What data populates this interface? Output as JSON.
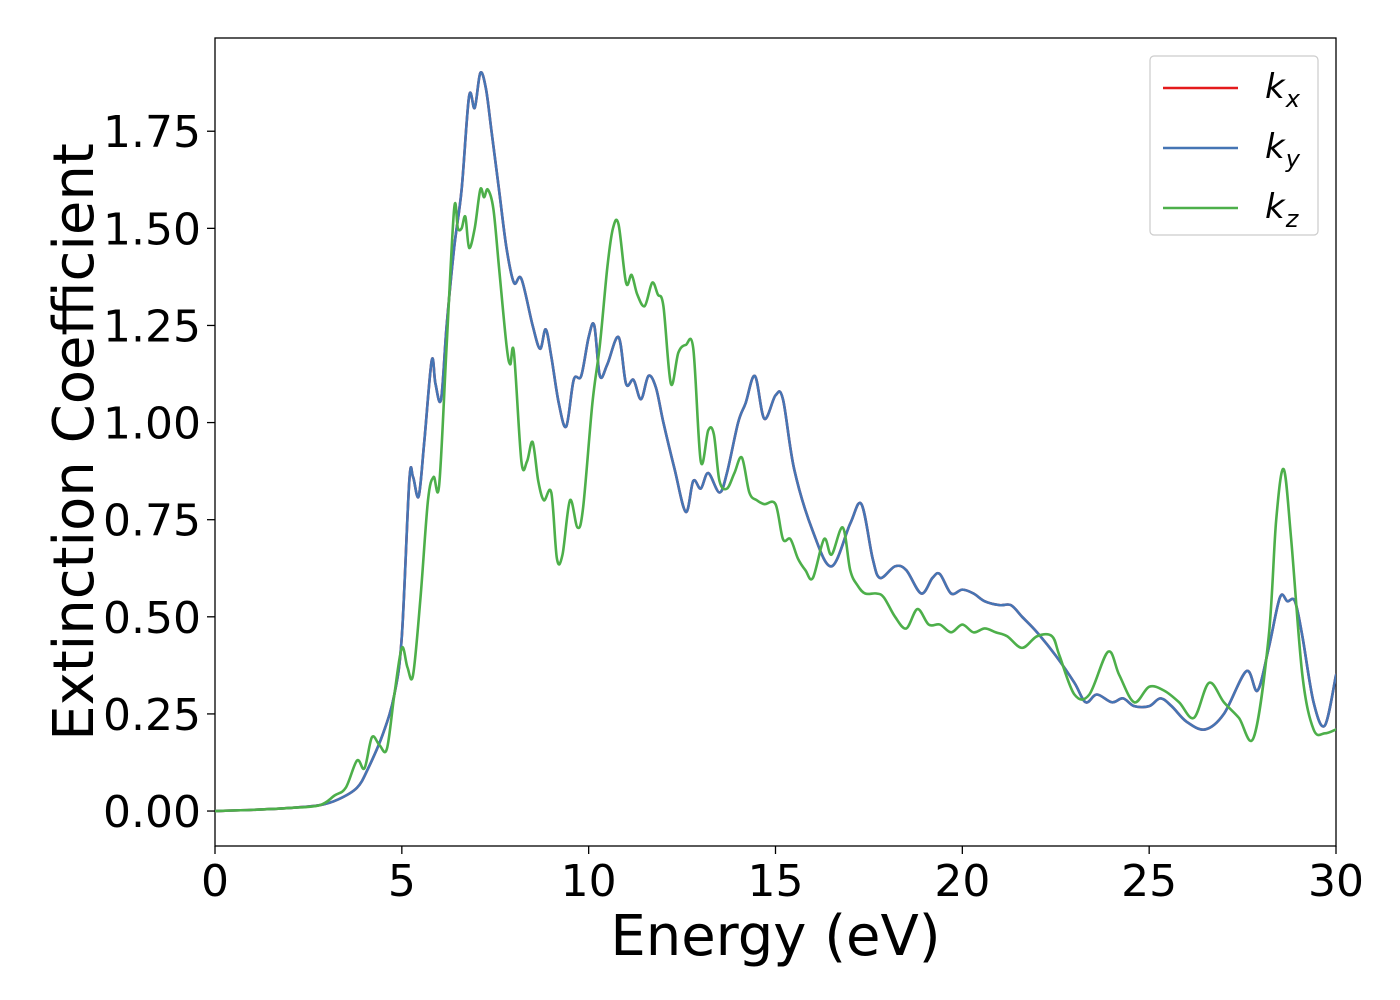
{
  "chart_data": {
    "type": "line",
    "title": "",
    "xlabel": "Energy (eV)",
    "ylabel": "Extinction Coefficient",
    "xlim": [
      0,
      30
    ],
    "ylim": [
      -0.09,
      1.99
    ],
    "xticks": [
      0,
      5,
      10,
      15,
      20,
      25,
      30
    ],
    "xtick_labels": [
      "0",
      "5",
      "10",
      "15",
      "20",
      "25",
      "30"
    ],
    "yticks": [
      0,
      0.25,
      0.5,
      0.75,
      1.0,
      1.25,
      1.5,
      1.75
    ],
    "ytick_labels": [
      "0.00",
      "0.25",
      "0.50",
      "0.75",
      "1.00",
      "1.25",
      "1.50",
      "1.75"
    ],
    "grid": false,
    "legend_position": "top-right",
    "series": [
      {
        "name": "k_x",
        "legend_base": "k",
        "legend_sub": "x",
        "color": "#e41a1c",
        "x": [
          0,
          1,
          2,
          2.8,
          3.3,
          3.8,
          4.1,
          4.5,
          4.8,
          5.0,
          5.2,
          5.3,
          5.45,
          5.6,
          5.8,
          5.9,
          6.05,
          6.2,
          6.4,
          6.6,
          6.8,
          6.95,
          7.1,
          7.25,
          7.4,
          7.6,
          7.8,
          8.0,
          8.2,
          8.5,
          8.7,
          8.85,
          9.0,
          9.2,
          9.4,
          9.6,
          9.8,
          10.0,
          10.15,
          10.3,
          10.5,
          10.8,
          11.0,
          11.2,
          11.4,
          11.6,
          11.8,
          12.0,
          12.3,
          12.6,
          12.8,
          13.0,
          13.2,
          13.5,
          13.7,
          14.0,
          14.2,
          14.45,
          14.7,
          15.0,
          15.2,
          15.5,
          16.0,
          16.5,
          17.0,
          17.3,
          17.6,
          17.8,
          18.2,
          18.5,
          18.9,
          19.2,
          19.4,
          19.7,
          20.0,
          20.3,
          20.6,
          21.0,
          21.3,
          21.6,
          22.0,
          22.5,
          23.0,
          23.3,
          23.6,
          24.0,
          24.3,
          24.6,
          25.0,
          25.3,
          25.6,
          26.0,
          26.5,
          27.0,
          27.6,
          27.9,
          28.2,
          28.5,
          28.7,
          28.9,
          29.1,
          29.4,
          29.7,
          30.0
        ],
        "y": [
          0.0,
          0.003,
          0.008,
          0.015,
          0.03,
          0.06,
          0.11,
          0.2,
          0.3,
          0.45,
          0.85,
          0.86,
          0.81,
          0.95,
          1.16,
          1.1,
          1.06,
          1.25,
          1.45,
          1.6,
          1.84,
          1.81,
          1.9,
          1.86,
          1.75,
          1.6,
          1.45,
          1.36,
          1.37,
          1.25,
          1.19,
          1.24,
          1.17,
          1.05,
          0.99,
          1.11,
          1.12,
          1.22,
          1.25,
          1.12,
          1.15,
          1.22,
          1.1,
          1.11,
          1.06,
          1.12,
          1.09,
          1.0,
          0.88,
          0.77,
          0.85,
          0.83,
          0.87,
          0.82,
          0.87,
          1.0,
          1.05,
          1.12,
          1.01,
          1.07,
          1.06,
          0.88,
          0.72,
          0.63,
          0.74,
          0.79,
          0.65,
          0.6,
          0.63,
          0.62,
          0.56,
          0.6,
          0.61,
          0.56,
          0.57,
          0.56,
          0.54,
          0.53,
          0.53,
          0.5,
          0.46,
          0.4,
          0.33,
          0.28,
          0.3,
          0.28,
          0.29,
          0.27,
          0.27,
          0.29,
          0.27,
          0.23,
          0.21,
          0.25,
          0.36,
          0.31,
          0.42,
          0.55,
          0.54,
          0.54,
          0.45,
          0.28,
          0.22,
          0.35
        ]
      },
      {
        "name": "k_y",
        "legend_base": "k",
        "legend_sub": "y",
        "color": "#4575b4",
        "x": [
          0,
          1,
          2,
          2.8,
          3.3,
          3.8,
          4.1,
          4.5,
          4.8,
          5.0,
          5.2,
          5.3,
          5.45,
          5.6,
          5.8,
          5.9,
          6.05,
          6.2,
          6.4,
          6.6,
          6.8,
          6.95,
          7.1,
          7.25,
          7.4,
          7.6,
          7.8,
          8.0,
          8.2,
          8.5,
          8.7,
          8.85,
          9.0,
          9.2,
          9.4,
          9.6,
          9.8,
          10.0,
          10.15,
          10.3,
          10.5,
          10.8,
          11.0,
          11.2,
          11.4,
          11.6,
          11.8,
          12.0,
          12.3,
          12.6,
          12.8,
          13.0,
          13.2,
          13.5,
          13.7,
          14.0,
          14.2,
          14.45,
          14.7,
          15.0,
          15.2,
          15.5,
          16.0,
          16.5,
          17.0,
          17.3,
          17.6,
          17.8,
          18.2,
          18.5,
          18.9,
          19.2,
          19.4,
          19.7,
          20.0,
          20.3,
          20.6,
          21.0,
          21.3,
          21.6,
          22.0,
          22.5,
          23.0,
          23.3,
          23.6,
          24.0,
          24.3,
          24.6,
          25.0,
          25.3,
          25.6,
          26.0,
          26.5,
          27.0,
          27.6,
          27.9,
          28.2,
          28.5,
          28.7,
          28.9,
          29.1,
          29.4,
          29.7,
          30.0
        ],
        "y": [
          0.0,
          0.003,
          0.008,
          0.015,
          0.03,
          0.06,
          0.11,
          0.2,
          0.3,
          0.45,
          0.85,
          0.86,
          0.81,
          0.95,
          1.16,
          1.1,
          1.06,
          1.25,
          1.45,
          1.6,
          1.84,
          1.81,
          1.9,
          1.86,
          1.75,
          1.6,
          1.45,
          1.36,
          1.37,
          1.25,
          1.19,
          1.24,
          1.17,
          1.05,
          0.99,
          1.11,
          1.12,
          1.22,
          1.25,
          1.12,
          1.15,
          1.22,
          1.1,
          1.11,
          1.06,
          1.12,
          1.09,
          1.0,
          0.88,
          0.77,
          0.85,
          0.83,
          0.87,
          0.82,
          0.87,
          1.0,
          1.05,
          1.12,
          1.01,
          1.07,
          1.06,
          0.88,
          0.72,
          0.63,
          0.74,
          0.79,
          0.65,
          0.6,
          0.63,
          0.62,
          0.56,
          0.6,
          0.61,
          0.56,
          0.57,
          0.56,
          0.54,
          0.53,
          0.53,
          0.5,
          0.46,
          0.4,
          0.33,
          0.28,
          0.3,
          0.28,
          0.29,
          0.27,
          0.27,
          0.29,
          0.27,
          0.23,
          0.21,
          0.25,
          0.36,
          0.31,
          0.42,
          0.55,
          0.54,
          0.54,
          0.45,
          0.28,
          0.22,
          0.35
        ]
      },
      {
        "name": "k_z",
        "legend_base": "k",
        "legend_sub": "z",
        "color": "#4daf4a",
        "x": [
          0,
          1,
          2,
          2.8,
          3.2,
          3.5,
          3.8,
          4.0,
          4.2,
          4.4,
          4.6,
          4.8,
          5.0,
          5.15,
          5.3,
          5.5,
          5.7,
          5.85,
          6.0,
          6.2,
          6.4,
          6.5,
          6.6,
          6.7,
          6.8,
          6.95,
          7.1,
          7.2,
          7.3,
          7.45,
          7.6,
          7.8,
          7.9,
          8.0,
          8.2,
          8.35,
          8.5,
          8.65,
          8.8,
          9.0,
          9.15,
          9.3,
          9.5,
          9.7,
          9.85,
          10.1,
          10.3,
          10.5,
          10.65,
          10.8,
          11.0,
          11.15,
          11.3,
          11.5,
          11.7,
          11.85,
          12.0,
          12.2,
          12.4,
          12.6,
          12.8,
          13.0,
          13.2,
          13.35,
          13.5,
          13.7,
          13.9,
          14.1,
          14.3,
          14.5,
          14.7,
          15.0,
          15.2,
          15.4,
          15.6,
          15.8,
          16.0,
          16.3,
          16.5,
          16.8,
          17.0,
          17.2,
          17.4,
          17.7,
          17.9,
          18.2,
          18.5,
          18.8,
          19.1,
          19.4,
          19.7,
          20.0,
          20.3,
          20.6,
          20.9,
          21.2,
          21.6,
          22.0,
          22.4,
          22.6,
          23.0,
          23.4,
          23.9,
          24.2,
          24.6,
          25.0,
          25.4,
          25.8,
          26.2,
          26.6,
          27.0,
          27.4,
          27.8,
          28.2,
          28.4,
          28.6,
          28.8,
          29.1,
          29.4,
          29.7,
          30.0
        ],
        "y": [
          0.0,
          0.003,
          0.008,
          0.015,
          0.04,
          0.06,
          0.13,
          0.11,
          0.19,
          0.17,
          0.16,
          0.3,
          0.42,
          0.37,
          0.35,
          0.55,
          0.8,
          0.86,
          0.84,
          1.2,
          1.55,
          1.5,
          1.5,
          1.53,
          1.45,
          1.5,
          1.6,
          1.58,
          1.6,
          1.55,
          1.4,
          1.2,
          1.15,
          1.18,
          0.9,
          0.9,
          0.95,
          0.85,
          0.8,
          0.82,
          0.65,
          0.66,
          0.8,
          0.73,
          0.78,
          1.05,
          1.2,
          1.4,
          1.5,
          1.51,
          1.36,
          1.38,
          1.33,
          1.3,
          1.36,
          1.33,
          1.3,
          1.1,
          1.18,
          1.2,
          1.19,
          0.9,
          0.98,
          0.97,
          0.85,
          0.83,
          0.87,
          0.91,
          0.82,
          0.8,
          0.79,
          0.79,
          0.7,
          0.7,
          0.65,
          0.62,
          0.6,
          0.7,
          0.66,
          0.73,
          0.62,
          0.58,
          0.56,
          0.56,
          0.55,
          0.5,
          0.47,
          0.52,
          0.48,
          0.48,
          0.46,
          0.48,
          0.46,
          0.47,
          0.46,
          0.45,
          0.42,
          0.45,
          0.45,
          0.4,
          0.3,
          0.3,
          0.41,
          0.35,
          0.28,
          0.32,
          0.31,
          0.28,
          0.24,
          0.33,
          0.28,
          0.24,
          0.19,
          0.45,
          0.75,
          0.88,
          0.7,
          0.35,
          0.21,
          0.2,
          0.21
        ]
      }
    ]
  }
}
